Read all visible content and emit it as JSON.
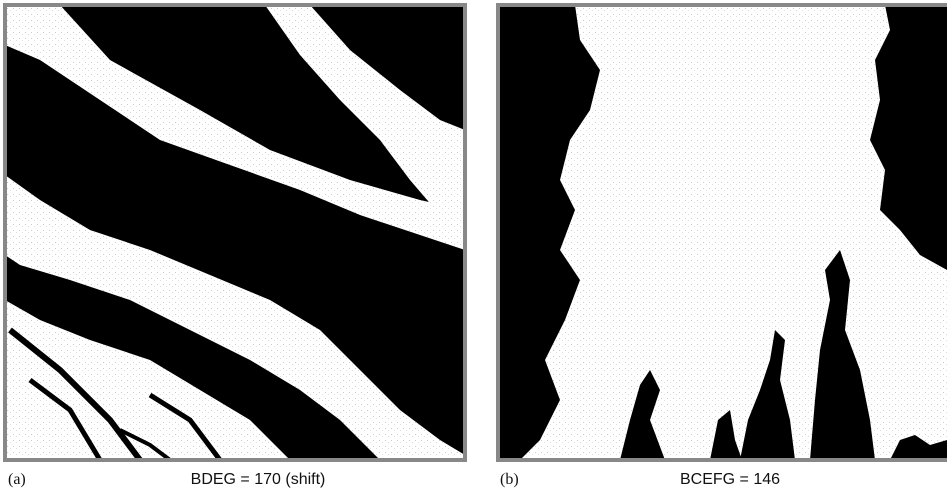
{
  "panels": [
    {
      "tag": "(a)",
      "caption": "BDEG = 170 (shift)"
    },
    {
      "tag": "(b)",
      "caption": "BCEFG = 146"
    }
  ]
}
